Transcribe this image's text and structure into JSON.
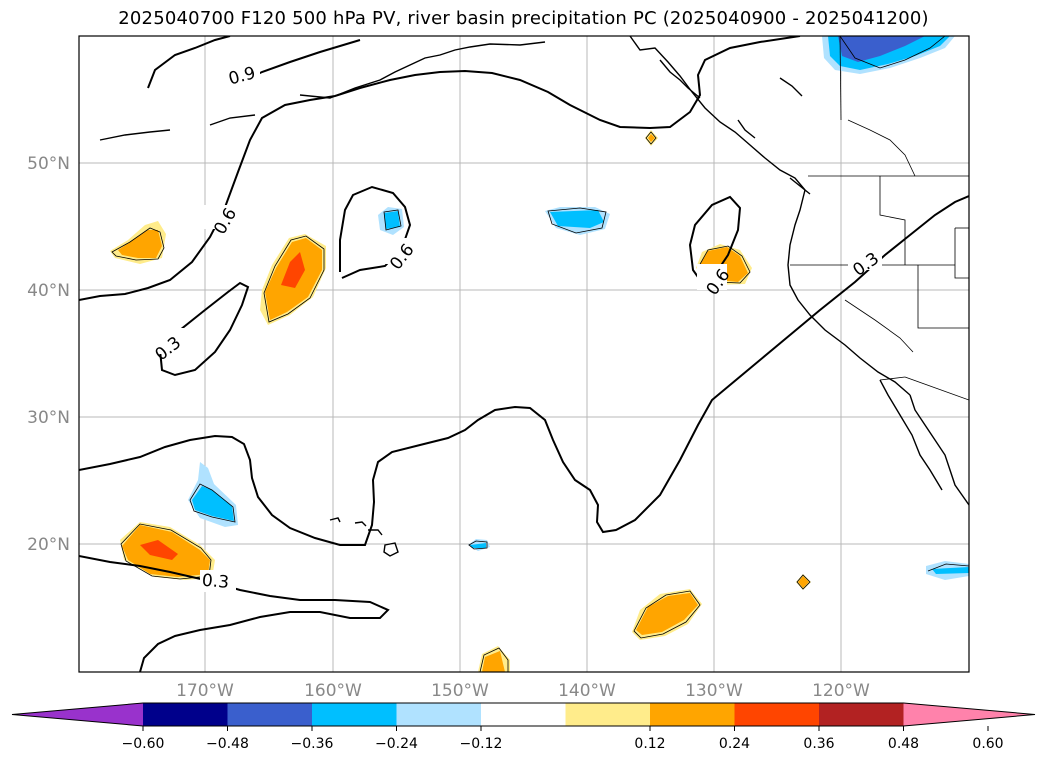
{
  "title": "2025040700 F120 500 hPa PV, river basin precipitation PC (2025040900 - 2025041200)",
  "lat_labels": [
    "50°N",
    "40°N",
    "30°N",
    "20°N"
  ],
  "lon_labels": [
    "170°W",
    "160°W",
    "150°W",
    "140°W",
    "130°W",
    "120°W"
  ],
  "contour_labels": [
    "0.9",
    "0.6",
    "0.6",
    "0.3",
    "0.6",
    "0.3",
    "0.3"
  ],
  "colorbar": {
    "colors": [
      "#9932cc",
      "#00008b",
      "#3a5fcd",
      "#00bfff",
      "#b0e2ff",
      "#ffffff",
      "#ffec8b",
      "#ffa500",
      "#ff4500",
      "#b22222",
      "#ff82ab"
    ],
    "ticks": [
      "−0.60",
      "−0.48",
      "−0.36",
      "−0.24",
      "−0.12",
      "0.12",
      "0.24",
      "0.36",
      "0.48",
      "0.60"
    ]
  }
}
